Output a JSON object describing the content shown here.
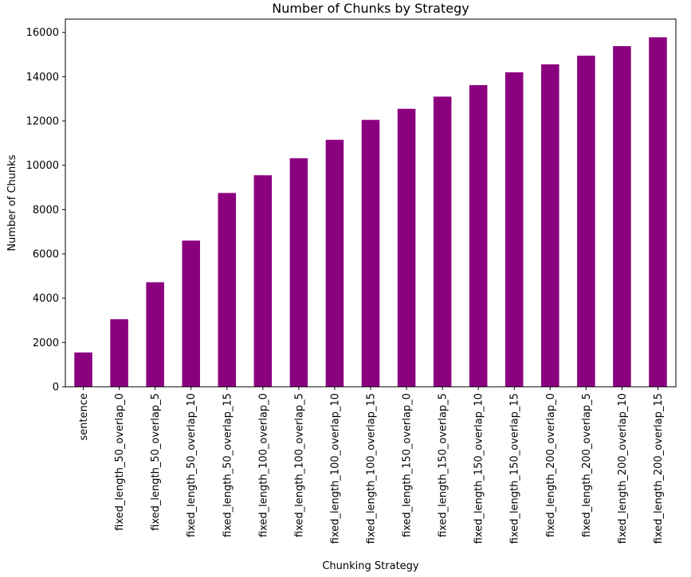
{
  "chart_data": {
    "type": "bar",
    "title": "Number of Chunks by Strategy",
    "xlabel": "Chunking Strategy",
    "ylabel": "Number of Chunks",
    "bar_color": "#8b007f",
    "ylim": [
      0,
      16600
    ],
    "yticks": [
      0,
      2000,
      4000,
      6000,
      8000,
      10000,
      12000,
      14000,
      16000
    ],
    "ytick_labels": [
      "0",
      "2000",
      "4000",
      "6000",
      "8000",
      "10000",
      "12000",
      "14000",
      "16000"
    ],
    "grid": false,
    "legend": "none",
    "categories": [
      "sentence",
      "fixed_length_50_overlap_0",
      "fixed_length_50_overlap_5",
      "fixed_length_50_overlap_10",
      "fixed_length_50_overlap_15",
      "fixed_length_100_overlap_0",
      "fixed_length_100_overlap_5",
      "fixed_length_100_overlap_10",
      "fixed_length_100_overlap_15",
      "fixed_length_150_overlap_0",
      "fixed_length_150_overlap_5",
      "fixed_length_150_overlap_10",
      "fixed_length_150_overlap_15",
      "fixed_length_200_overlap_0",
      "fixed_length_200_overlap_5",
      "fixed_length_200_overlap_10",
      "fixed_length_200_overlap_15"
    ],
    "values": [
      1550,
      3050,
      4720,
      6600,
      8750,
      9550,
      10320,
      11150,
      12050,
      12550,
      13100,
      13620,
      14200,
      14560,
      14950,
      15380,
      15780
    ]
  }
}
